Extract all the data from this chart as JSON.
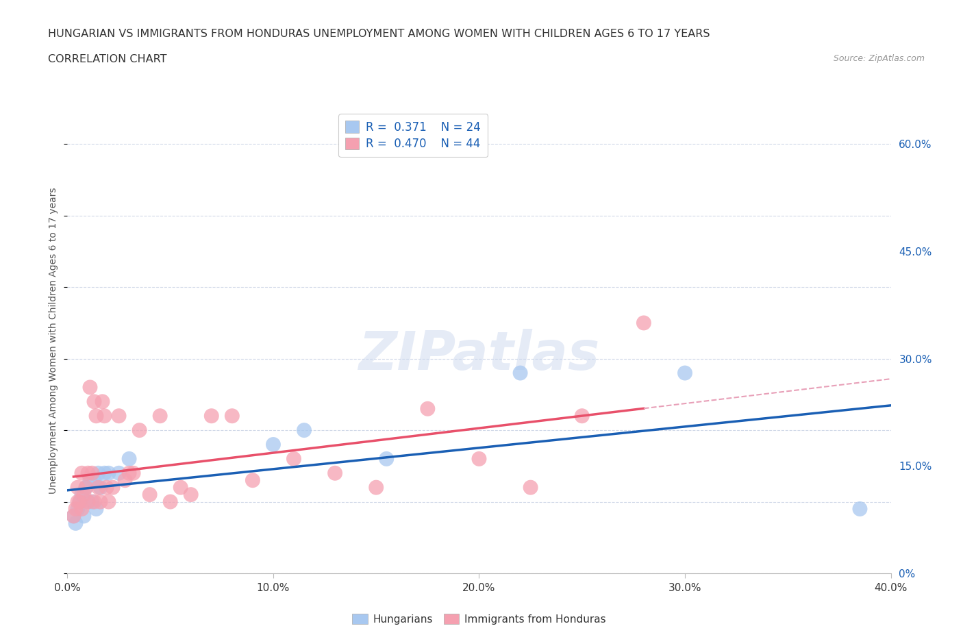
{
  "title_line1": "HUNGARIAN VS IMMIGRANTS FROM HONDURAS UNEMPLOYMENT AMONG WOMEN WITH CHILDREN AGES 6 TO 17 YEARS",
  "title_line2": "CORRELATION CHART",
  "source_text": "Source: ZipAtlas.com",
  "ylabel": "Unemployment Among Women with Children Ages 6 to 17 years",
  "xlim": [
    0.0,
    0.4
  ],
  "ylim": [
    0.0,
    0.65
  ],
  "xticks": [
    0.0,
    0.1,
    0.2,
    0.3,
    0.4
  ],
  "yticks_right": [
    0.0,
    0.15,
    0.3,
    0.45,
    0.6
  ],
  "ytick_labels_right": [
    "0%",
    "15.0%",
    "30.0%",
    "45.0%",
    "60.0%"
  ],
  "xtick_labels": [
    "0.0%",
    "10.0%",
    "20.0%",
    "30.0%",
    "40.0%"
  ],
  "hungarian_color": "#a8c8f0",
  "honduras_color": "#f5a0b0",
  "hungarian_R": 0.371,
  "hungarian_N": 24,
  "honduras_R": 0.47,
  "honduras_N": 44,
  "watermark": "ZIPatlas",
  "background_color": "#ffffff",
  "grid_color": "#d0d8e8",
  "hungarian_scatter_x": [
    0.003,
    0.004,
    0.005,
    0.006,
    0.007,
    0.008,
    0.009,
    0.01,
    0.011,
    0.012,
    0.013,
    0.014,
    0.015,
    0.016,
    0.018,
    0.02,
    0.025,
    0.03,
    0.1,
    0.115,
    0.155,
    0.22,
    0.3,
    0.385
  ],
  "hungarian_scatter_y": [
    0.08,
    0.07,
    0.09,
    0.1,
    0.11,
    0.08,
    0.12,
    0.1,
    0.13,
    0.1,
    0.13,
    0.09,
    0.14,
    0.12,
    0.14,
    0.14,
    0.14,
    0.16,
    0.18,
    0.2,
    0.16,
    0.28,
    0.28,
    0.09
  ],
  "honduras_scatter_x": [
    0.003,
    0.004,
    0.005,
    0.005,
    0.006,
    0.007,
    0.007,
    0.008,
    0.009,
    0.01,
    0.01,
    0.011,
    0.012,
    0.013,
    0.013,
    0.014,
    0.015,
    0.016,
    0.017,
    0.018,
    0.019,
    0.02,
    0.022,
    0.025,
    0.028,
    0.03,
    0.032,
    0.035,
    0.04,
    0.045,
    0.05,
    0.055,
    0.06,
    0.07,
    0.08,
    0.09,
    0.11,
    0.13,
    0.15,
    0.175,
    0.2,
    0.225,
    0.25,
    0.28
  ],
  "honduras_scatter_y": [
    0.08,
    0.09,
    0.1,
    0.12,
    0.1,
    0.09,
    0.14,
    0.11,
    0.12,
    0.1,
    0.14,
    0.26,
    0.14,
    0.1,
    0.24,
    0.22,
    0.12,
    0.1,
    0.24,
    0.22,
    0.12,
    0.1,
    0.12,
    0.22,
    0.13,
    0.14,
    0.14,
    0.2,
    0.11,
    0.22,
    0.1,
    0.12,
    0.11,
    0.22,
    0.22,
    0.13,
    0.16,
    0.14,
    0.12,
    0.23,
    0.16,
    0.12,
    0.22,
    0.35
  ],
  "hungarian_line_color": "#1a5fb4",
  "honduras_line_color": "#e8506a",
  "honduras_dash_color": "#e8a0b8"
}
